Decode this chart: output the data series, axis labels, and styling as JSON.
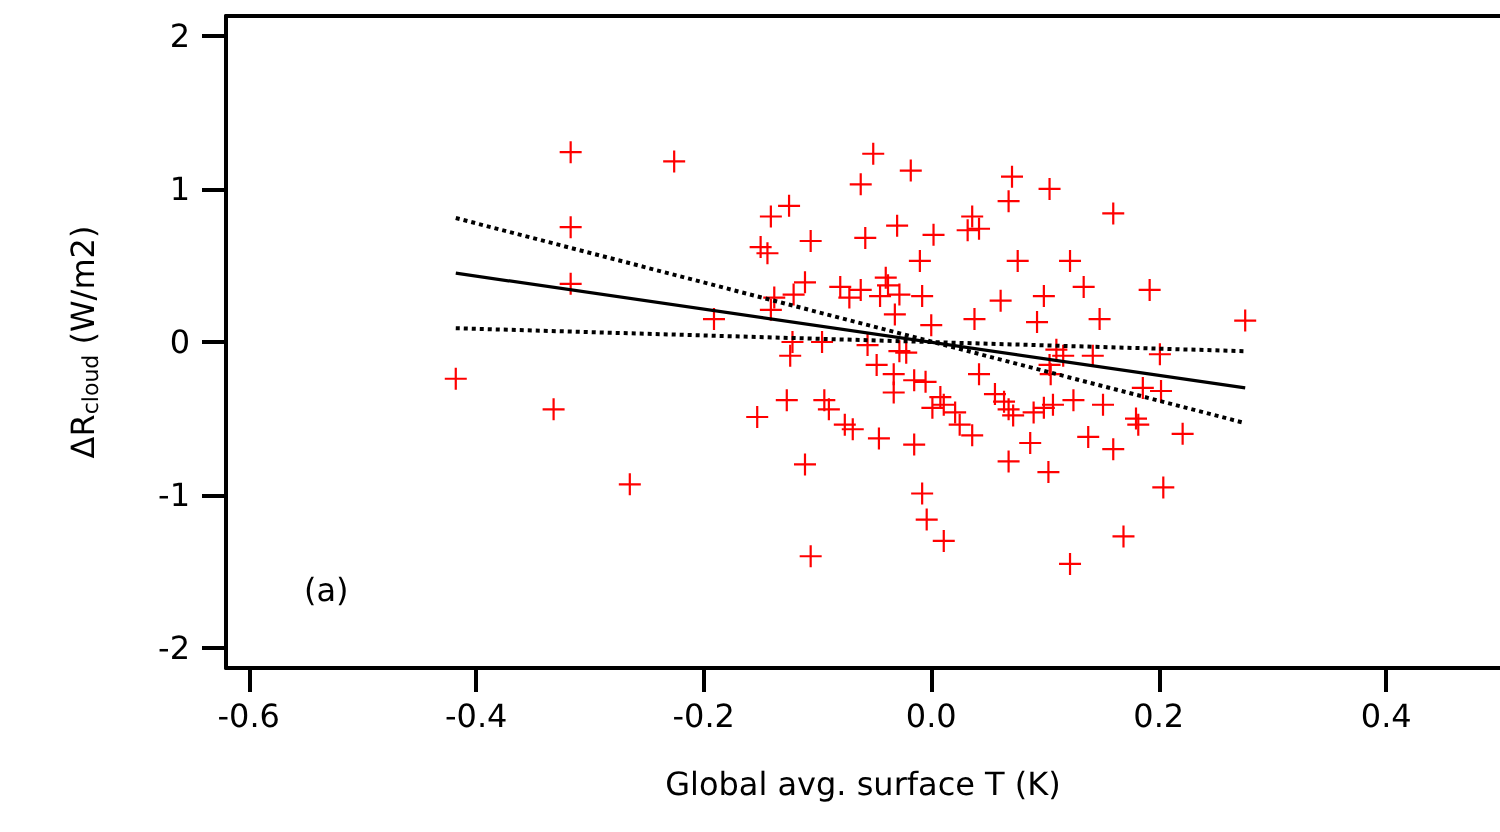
{
  "chart_data": {
    "type": "scatter",
    "xlabel": "Global avg. surface T (K)",
    "ylabel": "ΔR$_{cloud}$ (W/m2)",
    "annotations": [
      "(a)"
    ],
    "xlim": [
      -0.62,
      0.5
    ],
    "ylim": [
      -2.13,
      2.13
    ],
    "xticks": [
      -0.6,
      -0.4,
      -0.2,
      {
        "value": 0,
        "label": "0.0"
      },
      0.2,
      0.4
    ],
    "yticks": [
      -2,
      -1,
      0,
      1,
      2
    ],
    "grid": false,
    "series": [
      {
        "marker": "cross",
        "color": "#ff0000",
        "x": [
          -0.317,
          -0.226,
          -0.317,
          -0.317,
          -0.418,
          -0.332,
          -0.265,
          -0.191,
          -0.141,
          -0.125,
          -0.15,
          -0.144,
          -0.138,
          -0.121,
          -0.141,
          -0.122,
          -0.124,
          -0.127,
          -0.153,
          -0.051,
          -0.018,
          -0.062,
          0.071,
          0.104,
          0.068,
          0.16,
          -0.03,
          -0.058,
          -0.106,
          0.002,
          0.036,
          0.032,
          0.042,
          -0.01,
          0.076,
          0.122,
          -0.111,
          -0.08,
          -0.072,
          -0.062,
          -0.04,
          -0.038,
          -0.045,
          -0.028,
          -0.008,
          -0.032,
          0.061,
          0.099,
          0.134,
          0.192,
          0.0,
          0.038,
          0.093,
          0.148,
          -0.096,
          -0.056,
          -0.028,
          -0.022,
          0.11,
          0.116,
          0.142,
          0.201,
          -0.048,
          0.104,
          0.105,
          0.042,
          -0.033,
          -0.015,
          -0.005,
          -0.033,
          -0.094,
          -0.09,
          0.008,
          0.001,
          0.011,
          0.021,
          0.056,
          0.064,
          0.068,
          0.072,
          0.09,
          0.099,
          0.107,
          0.125,
          0.151,
          0.186,
          0.202,
          0.18,
          0.182,
          -0.076,
          -0.069,
          0.025,
          0.036,
          -0.046,
          -0.015,
          0.087,
          0.138,
          0.16,
          -0.111,
          0.068,
          0.103,
          0.204,
          -0.008,
          -0.004,
          0.011,
          0.169,
          -0.106,
          0.122,
          0.276,
          0.221
        ],
        "values": [
          1.24,
          1.18,
          0.75,
          0.38,
          -0.24,
          -0.44,
          -0.93,
          0.15,
          0.82,
          0.89,
          0.62,
          0.58,
          0.29,
          0.31,
          0.21,
          0.0,
          -0.09,
          -0.38,
          -0.49,
          1.23,
          1.12,
          1.03,
          1.08,
          1.0,
          0.92,
          0.84,
          0.76,
          0.68,
          0.66,
          0.7,
          0.82,
          0.73,
          0.74,
          0.53,
          0.53,
          0.53,
          0.39,
          0.36,
          0.29,
          0.34,
          0.42,
          0.37,
          0.3,
          0.31,
          0.3,
          0.18,
          0.27,
          0.3,
          0.36,
          0.34,
          0.11,
          0.15,
          0.13,
          0.15,
          0.0,
          -0.02,
          -0.06,
          -0.07,
          -0.05,
          -0.09,
          -0.09,
          -0.08,
          -0.15,
          -0.15,
          -0.21,
          -0.21,
          -0.21,
          -0.25,
          -0.26,
          -0.33,
          -0.38,
          -0.44,
          -0.36,
          -0.43,
          -0.41,
          -0.46,
          -0.34,
          -0.39,
          -0.44,
          -0.48,
          -0.46,
          -0.43,
          -0.41,
          -0.38,
          -0.41,
          -0.3,
          -0.32,
          -0.5,
          -0.54,
          -0.54,
          -0.57,
          -0.54,
          -0.61,
          -0.63,
          -0.67,
          -0.66,
          -0.62,
          -0.7,
          -0.8,
          -0.78,
          -0.85,
          -0.95,
          -0.99,
          -1.16,
          -1.3,
          -1.27,
          -1.4,
          -1.45,
          0.14,
          -0.6
        ]
      },
      {
        "type": "line",
        "line_style": "solid",
        "marker": "none",
        "color": "#000000",
        "x": [
          -0.418,
          0.276
        ],
        "values": [
          0.45,
          -0.3
        ]
      },
      {
        "type": "line",
        "line_style": "dotted",
        "marker": "none",
        "color": "#000000",
        "x": [
          -0.418,
          0.276
        ],
        "values": [
          0.81,
          -0.53
        ]
      },
      {
        "type": "line",
        "line_style": "dotted",
        "marker": "none",
        "color": "#000000",
        "x": [
          -0.418,
          0.276
        ],
        "values": [
          0.09,
          -0.06
        ]
      }
    ]
  }
}
